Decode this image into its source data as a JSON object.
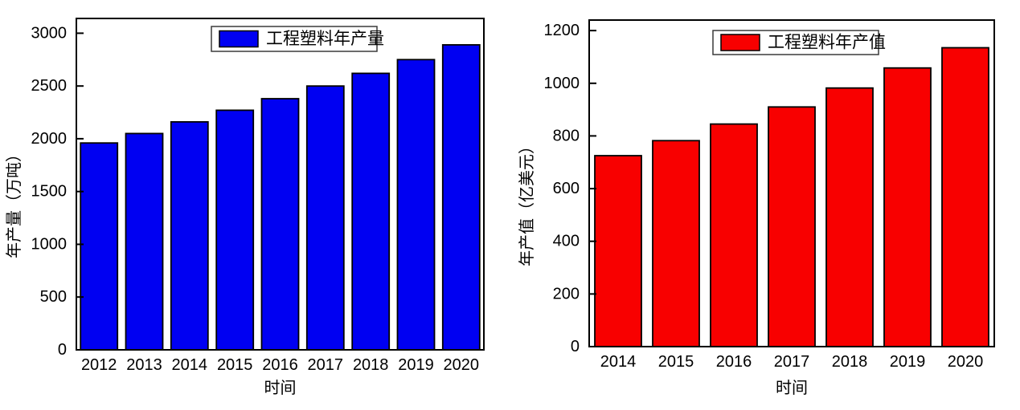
{
  "page": {
    "background": "#ffffff"
  },
  "chart_data": [
    {
      "type": "bar",
      "name": "engineering-plastics-annual-production",
      "legend": "工程塑料年产量",
      "legend_position": "top-center-inside",
      "xlabel": "时间",
      "ylabel": "年产量（万吨）",
      "categories": [
        "2012",
        "2013",
        "2014",
        "2015",
        "2016",
        "2017",
        "2018",
        "2019",
        "2020"
      ],
      "values": [
        1960,
        2050,
        2160,
        2270,
        2380,
        2500,
        2620,
        2750,
        2890
      ],
      "yticks": [
        0,
        500,
        1000,
        1500,
        2000,
        2500,
        3000
      ],
      "ylim": [
        0,
        3140
      ],
      "grid": false,
      "bar_color": "#0000F2",
      "bar_border_color": "#000000",
      "axis_color": "#000000"
    },
    {
      "type": "bar",
      "name": "engineering-plastics-annual-output-value",
      "legend": "工程塑料年产值",
      "legend_position": "top-center-inside",
      "xlabel": "时间",
      "ylabel": "年产值（亿美元）",
      "categories": [
        "2014",
        "2015",
        "2016",
        "2017",
        "2018",
        "2019",
        "2020"
      ],
      "values": [
        725,
        782,
        845,
        910,
        982,
        1058,
        1135
      ],
      "yticks": [
        0,
        200,
        400,
        600,
        800,
        1000,
        1200
      ],
      "ylim": [
        0,
        1240
      ],
      "grid": false,
      "bar_color": "#F80000",
      "bar_border_color": "#000000",
      "axis_color": "#000000"
    }
  ]
}
